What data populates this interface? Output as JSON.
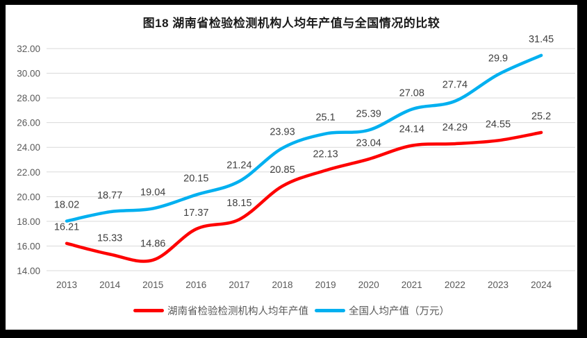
{
  "chart_data": {
    "type": "line",
    "title": "图18 湖南省检验检测机构人均年产值与全国情况的比较",
    "categories": [
      "2013",
      "2014",
      "2015",
      "2016",
      "2017",
      "2018",
      "2019",
      "2020",
      "2021",
      "2022",
      "2023",
      "2024"
    ],
    "series": [
      {
        "name": "湖南省检验检测机构人均年产值",
        "color": "#fe0000",
        "values": [
          16.21,
          15.33,
          14.86,
          17.37,
          18.15,
          20.85,
          22.13,
          23.04,
          24.14,
          24.29,
          24.55,
          25.2
        ]
      },
      {
        "name": "全国人均产值（万元）",
        "color": "#00b0f0",
        "values": [
          18.02,
          18.77,
          19.04,
          20.15,
          21.24,
          23.93,
          25.1,
          25.39,
          27.08,
          27.74,
          29.9,
          31.45
        ]
      }
    ],
    "ylim": [
      14,
      32
    ],
    "ytick_step": 2,
    "ytick_decimals": 2,
    "grid": "horizontal-only",
    "legend_position": "bottom",
    "data_labels": "above-points",
    "style": {
      "grid_color": "#d9d9d9",
      "axis_text_color": "#595959",
      "data_label_color": "#404040",
      "background": "#ffffff",
      "frame_color": "#000000"
    }
  }
}
